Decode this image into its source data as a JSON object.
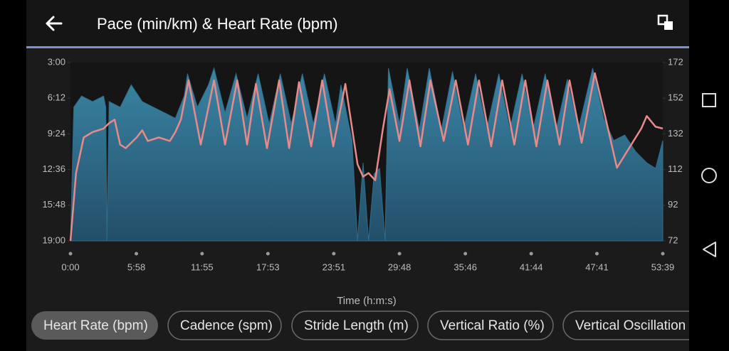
{
  "header": {
    "title": "Pace (min/km) & Heart Rate (bpm)"
  },
  "chart_data": {
    "type": "area-line",
    "x_label": "Time (h:m:s)",
    "xlim": [
      0,
      53.65
    ],
    "xticks": [
      {
        "value": 0,
        "label": "0:00"
      },
      {
        "value": 5.967,
        "label": "5:58"
      },
      {
        "value": 11.917,
        "label": "11:55"
      },
      {
        "value": 17.883,
        "label": "17:53"
      },
      {
        "value": 23.85,
        "label": "23:51"
      },
      {
        "value": 29.8,
        "label": "29:48"
      },
      {
        "value": 35.767,
        "label": "35:46"
      },
      {
        "value": 41.733,
        "label": "41:44"
      },
      {
        "value": 47.683,
        "label": "47:41"
      },
      {
        "value": 53.65,
        "label": "53:39"
      }
    ],
    "ylim": [
      19,
      3
    ],
    "yticks": [
      {
        "value": 3,
        "label": "3:00"
      },
      {
        "value": 6.2,
        "label": "6:12"
      },
      {
        "value": 9.4,
        "label": "9:24"
      },
      {
        "value": 12.6,
        "label": "12:36"
      },
      {
        "value": 15.8,
        "label": "15:48"
      },
      {
        "value": 19,
        "label": "19:00"
      }
    ],
    "y2lim": [
      72,
      172
    ],
    "y2ticks": [
      72,
      92,
      112,
      132,
      152,
      172
    ],
    "series": [
      {
        "name": "Pace",
        "color": "#2e6d8c",
        "kind": "area",
        "x": [
          0,
          0.3,
          1,
          2,
          3,
          3.2,
          3.3,
          3.5,
          4.5,
          5.5,
          6.5,
          7.5,
          8.5,
          9.5,
          10.3,
          10.6,
          11.5,
          12.5,
          13,
          14,
          15,
          16,
          17,
          18,
          19,
          20,
          21,
          22,
          23,
          24,
          24.5,
          25.5,
          26,
          26.5,
          27,
          27.5,
          28,
          28.5,
          28.8,
          29.8,
          30.5,
          31.6,
          32.5,
          33.6,
          34.6,
          35.6,
          36.7,
          37.7,
          38.8,
          39.8,
          40.9,
          41.9,
          43,
          44,
          45,
          46,
          47.3,
          48.3,
          49.2,
          50.2,
          51.2,
          52.2,
          53,
          53.65
        ],
        "values": [
          19,
          7,
          6,
          6.5,
          6,
          7,
          19,
          6.5,
          7,
          5,
          6.5,
          7,
          7.5,
          8,
          6,
          4,
          7,
          5,
          3.5,
          7.5,
          4,
          8,
          4,
          8.5,
          4,
          8.5,
          4,
          8.5,
          4,
          8.5,
          5,
          10,
          19,
          12,
          19,
          13,
          12.5,
          19,
          3.5,
          8.5,
          3.5,
          9,
          3.5,
          9,
          3.8,
          9,
          4,
          9,
          4,
          9,
          4,
          9,
          4,
          9,
          4.5,
          9,
          3.5,
          8,
          10,
          9.5,
          11,
          12,
          12.5,
          10
        ]
      },
      {
        "name": "Heart Rate",
        "color": "#e98a8a",
        "kind": "line",
        "axis": "y2",
        "x": [
          0,
          0.5,
          1.2,
          2,
          3,
          3.5,
          4,
          4.5,
          5,
          6,
          6.5,
          7,
          8,
          9,
          9.5,
          10,
          10.7,
          11.8,
          13,
          14,
          15.1,
          16,
          16.8,
          17.8,
          18.9,
          19.8,
          20.7,
          21.8,
          22.8,
          23.8,
          24.9,
          26,
          26.5,
          27,
          27.6,
          28.3,
          28.9,
          29.8,
          30.7,
          31.7,
          32.6,
          33.8,
          34.9,
          36,
          37,
          38.1,
          39.1,
          40.2,
          41.2,
          42.2,
          43.2,
          44.3,
          45.2,
          46.3,
          47.5,
          48.5,
          49.5,
          50.2,
          51,
          51.7,
          52.2,
          53,
          53.65
        ],
        "values": [
          72,
          110,
          130,
          133,
          135,
          138,
          140,
          126,
          124,
          130,
          134,
          128,
          130,
          128,
          133,
          140,
          162,
          126,
          162,
          126,
          162,
          126,
          160,
          124,
          162,
          124,
          161,
          125,
          162,
          125,
          160,
          115,
          108,
          110,
          106,
          135,
          157,
          128,
          162,
          125,
          162,
          128,
          162,
          126,
          162,
          125,
          162,
          126,
          162,
          125,
          162,
          126,
          162,
          127,
          166,
          140,
          113,
          120,
          128,
          135,
          142,
          136,
          135
        ]
      }
    ]
  },
  "chips": [
    "Heart Rate (bpm)",
    "Cadence (spm)",
    "Stride Length (m)",
    "Vertical Ratio (%)",
    "Vertical Oscillation"
  ]
}
